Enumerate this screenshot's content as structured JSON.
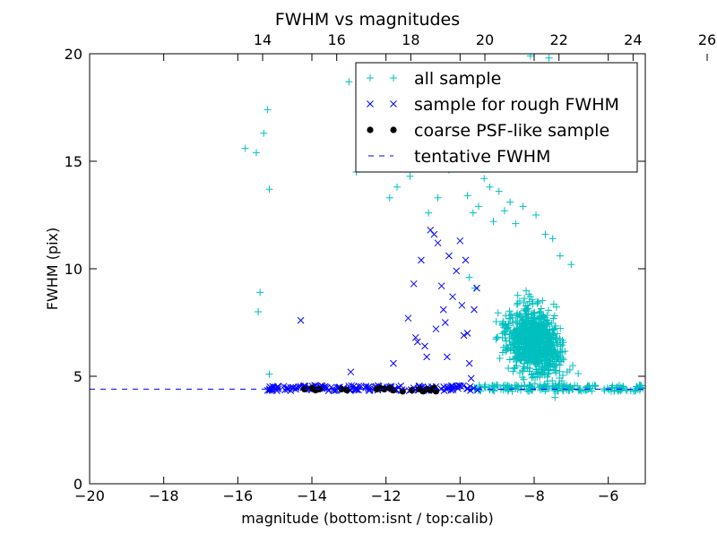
{
  "chart_data": {
    "type": "scatter",
    "title": "FWHM vs magnitudes",
    "xlabel": "magnitude (bottom:isnt / top:calib)",
    "ylabel": "FWHM (pix)",
    "xlim": [
      -20,
      -5
    ],
    "ylim": [
      0,
      20
    ],
    "x_ticks": [
      -20,
      -18,
      -16,
      -14,
      -12,
      -10,
      -8,
      -6
    ],
    "x_tick_labels": [
      "−20",
      "−18",
      "−16",
      "−14",
      "−12",
      "−10",
      "−8",
      "−6"
    ],
    "y_ticks": [
      0,
      5,
      10,
      15,
      20
    ],
    "y_tick_labels": [
      "0",
      "5",
      "10",
      "15",
      "20"
    ],
    "top_axis": {
      "calib_offset": 29.33,
      "ticks": [
        14,
        16,
        18,
        20,
        22,
        24,
        26
      ],
      "tick_labels": [
        "14",
        "16",
        "18",
        "20",
        "22",
        "24",
        "26"
      ]
    },
    "grid": false,
    "legend_position": "top-right",
    "series": [
      {
        "name": "all sample",
        "marker": "+",
        "color": "#00bfbf",
        "points": [
          [
            -15.8,
            15.6
          ],
          [
            -15.5,
            15.4
          ],
          [
            -15.3,
            16.3
          ],
          [
            -15.2,
            17.4
          ],
          [
            -15.15,
            13.7
          ],
          [
            -15.4,
            8.9
          ],
          [
            -15.45,
            8.0
          ],
          [
            -15.15,
            5.1
          ],
          [
            -13.0,
            18.7
          ],
          [
            -12.8,
            14.5
          ],
          [
            -11.9,
            13.3
          ],
          [
            -11.7,
            13.8
          ],
          [
            -11.35,
            14.3
          ],
          [
            -10.85,
            12.6
          ],
          [
            -10.6,
            13.3
          ],
          [
            -10.3,
            14.6
          ],
          [
            -9.8,
            13.4
          ],
          [
            -9.65,
            12.6
          ],
          [
            -9.5,
            12.9
          ],
          [
            -9.35,
            14.2
          ],
          [
            -9.2,
            13.8
          ],
          [
            -9.1,
            12.2
          ],
          [
            -8.95,
            13.6
          ],
          [
            -8.8,
            12.7
          ],
          [
            -8.65,
            13.1
          ],
          [
            -8.5,
            12.1
          ],
          [
            -8.3,
            12.9
          ],
          [
            -7.95,
            12.5
          ],
          [
            -7.7,
            11.6
          ],
          [
            -7.5,
            11.4
          ],
          [
            -7.3,
            10.6
          ],
          [
            -7.0,
            10.2
          ],
          [
            -8.1,
            19.9
          ],
          [
            -7.6,
            19.8
          ],
          [
            -9.2,
            17.5
          ],
          [
            -8.45,
            16.3
          ],
          [
            -7.15,
            16.2
          ],
          [
            -6.95,
            15.2
          ],
          [
            -9.75,
            9.6
          ],
          [
            -9.6,
            9.1
          ]
        ]
      },
      {
        "name": "sample for rough FWHM",
        "marker": "x",
        "color": "#0000ff",
        "points": [
          [
            -14.3,
            7.6
          ],
          [
            -12.95,
            5.2
          ],
          [
            -11.8,
            5.6
          ],
          [
            -11.4,
            7.7
          ],
          [
            -11.25,
            9.3
          ],
          [
            -11.2,
            6.8
          ],
          [
            -11.05,
            10.4
          ],
          [
            -10.9,
            5.9
          ],
          [
            -10.8,
            11.8
          ],
          [
            -10.7,
            11.6
          ],
          [
            -10.6,
            11.2
          ],
          [
            -10.5,
            9.2
          ],
          [
            -10.45,
            8.1
          ],
          [
            -10.4,
            7.5
          ],
          [
            -10.3,
            10.6
          ],
          [
            -10.2,
            8.7
          ],
          [
            -10.1,
            9.9
          ],
          [
            -10.0,
            11.3
          ],
          [
            -9.95,
            8.3
          ],
          [
            -9.9,
            6.9
          ],
          [
            -9.85,
            10.4
          ],
          [
            -9.8,
            7.0
          ],
          [
            -9.75,
            5.6
          ],
          [
            -9.7,
            4.9
          ],
          [
            -9.62,
            8.1
          ],
          [
            -9.55,
            9.1
          ],
          [
            -10.65,
            7.2
          ],
          [
            -10.95,
            6.4
          ],
          [
            -11.15,
            6.6
          ],
          [
            -10.35,
            5.9
          ]
        ]
      },
      {
        "name": "coarse PSF-like sample",
        "marker": "o",
        "color": "#000000",
        "points": [
          [
            -14.2,
            4.4
          ],
          [
            -14.0,
            4.45
          ],
          [
            -13.9,
            4.35
          ],
          [
            -13.8,
            4.4
          ],
          [
            -13.2,
            4.4
          ],
          [
            -13.05,
            4.35
          ],
          [
            -12.25,
            4.4
          ],
          [
            -12.15,
            4.45
          ],
          [
            -12.05,
            4.4
          ],
          [
            -11.9,
            4.45
          ],
          [
            -11.8,
            4.35
          ],
          [
            -11.55,
            4.3
          ],
          [
            -11.3,
            4.35
          ],
          [
            -11.1,
            4.4
          ],
          [
            -11.0,
            4.3
          ],
          [
            -10.9,
            4.4
          ],
          [
            -10.8,
            4.35
          ],
          [
            -10.7,
            4.45
          ],
          [
            -10.65,
            4.3
          ]
        ]
      },
      {
        "name": "tentative FWHM",
        "marker": "dashed-line",
        "color": "#0000ff",
        "y": 4.4
      }
    ]
  }
}
